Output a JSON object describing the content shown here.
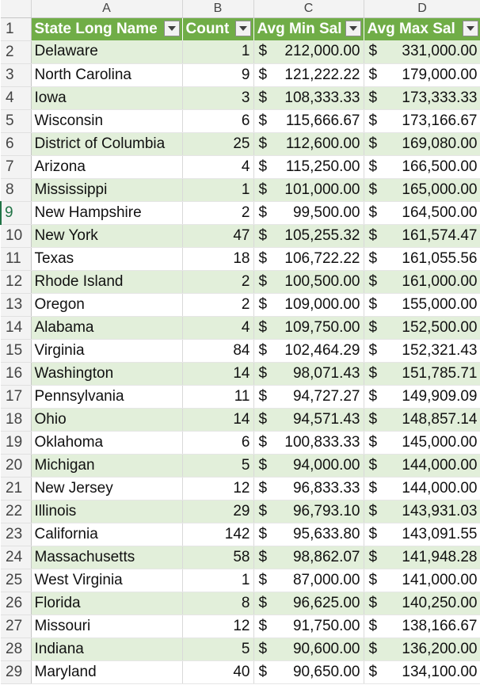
{
  "column_headers": [
    "A",
    "B",
    "C",
    "D"
  ],
  "table_headers": [
    "State Long Name",
    "Count",
    "Avg Min Sal",
    "Avg Max Sal"
  ],
  "currency_symbol": "$",
  "selected_row": 9,
  "rows": [
    {
      "n": "2",
      "state": "Delaware",
      "count": "1",
      "min": "212,000.00",
      "max": "331,000.00"
    },
    {
      "n": "3",
      "state": "North Carolina",
      "count": "9",
      "min": "121,222.22",
      "max": "179,000.00"
    },
    {
      "n": "4",
      "state": "Iowa",
      "count": "3",
      "min": "108,333.33",
      "max": "173,333.33"
    },
    {
      "n": "5",
      "state": "Wisconsin",
      "count": "6",
      "min": "115,666.67",
      "max": "173,166.67"
    },
    {
      "n": "6",
      "state": "District of Columbia",
      "count": "25",
      "min": "112,600.00",
      "max": "169,080.00"
    },
    {
      "n": "7",
      "state": "Arizona",
      "count": "4",
      "min": "115,250.00",
      "max": "166,500.00"
    },
    {
      "n": "8",
      "state": "Mississippi",
      "count": "1",
      "min": "101,000.00",
      "max": "165,000.00"
    },
    {
      "n": "9",
      "state": "New Hampshire",
      "count": "2",
      "min": "99,500.00",
      "max": "164,500.00"
    },
    {
      "n": "10",
      "state": "New York",
      "count": "47",
      "min": "105,255.32",
      "max": "161,574.47"
    },
    {
      "n": "11",
      "state": "Texas",
      "count": "18",
      "min": "106,722.22",
      "max": "161,055.56"
    },
    {
      "n": "12",
      "state": "Rhode Island",
      "count": "2",
      "min": "100,500.00",
      "max": "161,000.00"
    },
    {
      "n": "13",
      "state": "Oregon",
      "count": "2",
      "min": "109,000.00",
      "max": "155,000.00"
    },
    {
      "n": "14",
      "state": "Alabama",
      "count": "4",
      "min": "109,750.00",
      "max": "152,500.00"
    },
    {
      "n": "15",
      "state": "Virginia",
      "count": "84",
      "min": "102,464.29",
      "max": "152,321.43"
    },
    {
      "n": "16",
      "state": "Washington",
      "count": "14",
      "min": "98,071.43",
      "max": "151,785.71"
    },
    {
      "n": "17",
      "state": "Pennsylvania",
      "count": "11",
      "min": "94,727.27",
      "max": "149,909.09"
    },
    {
      "n": "18",
      "state": "Ohio",
      "count": "14",
      "min": "94,571.43",
      "max": "148,857.14"
    },
    {
      "n": "19",
      "state": "Oklahoma",
      "count": "6",
      "min": "100,833.33",
      "max": "145,000.00"
    },
    {
      "n": "20",
      "state": "Michigan",
      "count": "5",
      "min": "94,000.00",
      "max": "144,000.00"
    },
    {
      "n": "21",
      "state": "New Jersey",
      "count": "12",
      "min": "96,833.33",
      "max": "144,000.00"
    },
    {
      "n": "22",
      "state": "Illinois",
      "count": "29",
      "min": "96,793.10",
      "max": "143,931.03"
    },
    {
      "n": "23",
      "state": "California",
      "count": "142",
      "min": "95,633.80",
      "max": "143,091.55"
    },
    {
      "n": "24",
      "state": "Massachusetts",
      "count": "58",
      "min": "98,862.07",
      "max": "141,948.28"
    },
    {
      "n": "25",
      "state": "West Virginia",
      "count": "1",
      "min": "87,000.00",
      "max": "141,000.00"
    },
    {
      "n": "26",
      "state": "Florida",
      "count": "8",
      "min": "96,625.00",
      "max": "140,250.00"
    },
    {
      "n": "27",
      "state": "Missouri",
      "count": "12",
      "min": "91,750.00",
      "max": "138,166.67"
    },
    {
      "n": "28",
      "state": "Indiana",
      "count": "5",
      "min": "90,600.00",
      "max": "136,200.00"
    },
    {
      "n": "29",
      "state": "Maryland",
      "count": "40",
      "min": "90,650.00",
      "max": "134,100.00"
    }
  ]
}
